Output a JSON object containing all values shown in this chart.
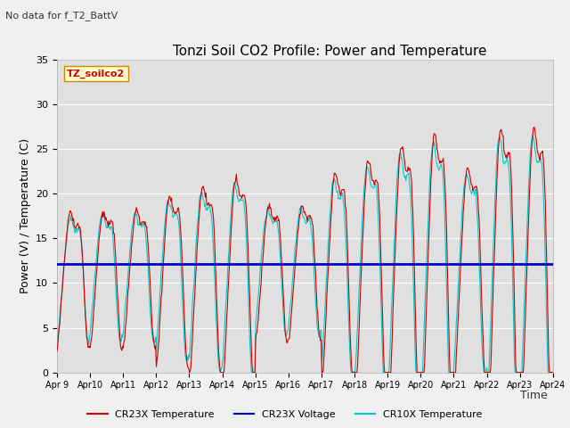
{
  "title": "Tonzi Soil CO2 Profile: Power and Temperature",
  "subtitle": "No data for f_T2_BattV",
  "ylabel": "Power (V) / Temperature (C)",
  "xlabel": "Time",
  "watermark": "TZ_soilco2",
  "ylim": [
    0,
    35
  ],
  "yticks": [
    0,
    5,
    10,
    15,
    20,
    25,
    30,
    35
  ],
  "x_labels": [
    "Apr 9",
    "Apr 10",
    "Apr 11",
    "Apr 12",
    "Apr 13",
    "Apr 14",
    "Apr 15",
    "Apr 16",
    "Apr 17",
    "Apr 18",
    "Apr 19",
    "Apr 20",
    "Apr 21",
    "Apr 22",
    "Apr 23",
    "Apr 24"
  ],
  "num_days": 15,
  "voltage_value": 12.1,
  "fig_bg_color": "#f0f0f0",
  "plot_bg": "#e0e0e0",
  "cr23x_temp_color": "#cc0000",
  "cr23x_volt_color": "#0000cc",
  "cr10x_temp_color": "#00cccc",
  "legend_entries": [
    "CR23X Temperature",
    "CR23X Voltage",
    "CR10X Temperature"
  ],
  "title_fontsize": 11,
  "axis_fontsize": 9,
  "tick_fontsize": 8
}
